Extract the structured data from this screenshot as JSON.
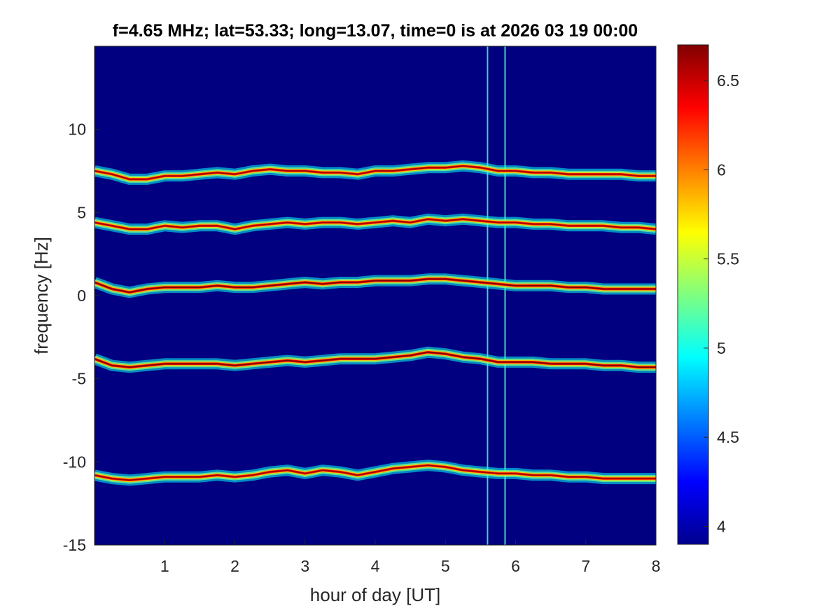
{
  "chart_data": {
    "type": "heatmap",
    "title": "f=4.65 MHz;  lat=53.33; long=13.07, time=0 is at 2026 03 19 00:00",
    "xlabel": "hour of day [UT]",
    "ylabel": "frequency [Hz]",
    "xlim": [
      0,
      8
    ],
    "ylim": [
      -15,
      15
    ],
    "xticks": [
      1,
      2,
      3,
      4,
      5,
      6,
      7,
      8
    ],
    "yticks": [
      -15,
      -10,
      -5,
      0,
      5,
      10
    ],
    "colorbar": {
      "limits": [
        3.9,
        6.7
      ],
      "ticks": [
        4,
        4.5,
        5,
        5.5,
        6,
        6.5
      ],
      "colormap": "jet"
    },
    "background_value": 3.9,
    "series": [
      {
        "x": [
          0,
          0.25,
          0.5,
          0.75,
          1,
          1.25,
          1.5,
          1.75,
          2,
          2.25,
          2.5,
          2.75,
          3,
          3.25,
          3.5,
          3.75,
          4,
          4.25,
          4.5,
          4.75,
          5,
          5.25,
          5.5,
          5.75,
          6,
          6.25,
          6.5,
          6.75,
          7,
          7.25,
          7.5,
          7.75,
          8
        ],
        "y": [
          7.5,
          7.3,
          7.0,
          7.0,
          7.2,
          7.2,
          7.3,
          7.4,
          7.3,
          7.5,
          7.6,
          7.5,
          7.5,
          7.4,
          7.4,
          7.3,
          7.5,
          7.5,
          7.6,
          7.7,
          7.7,
          7.8,
          7.7,
          7.5,
          7.5,
          7.4,
          7.4,
          7.3,
          7.3,
          7.3,
          7.3,
          7.2,
          7.2
        ],
        "peak": 6.6
      },
      {
        "x": [
          0,
          0.25,
          0.5,
          0.75,
          1,
          1.25,
          1.5,
          1.75,
          2,
          2.25,
          2.5,
          2.75,
          3,
          3.25,
          3.5,
          3.75,
          4,
          4.25,
          4.5,
          4.75,
          5,
          5.25,
          5.5,
          5.75,
          6,
          6.25,
          6.5,
          6.75,
          7,
          7.25,
          7.5,
          7.75,
          8
        ],
        "y": [
          4.4,
          4.2,
          4.0,
          4.0,
          4.2,
          4.1,
          4.2,
          4.2,
          4.0,
          4.2,
          4.3,
          4.4,
          4.3,
          4.4,
          4.4,
          4.3,
          4.4,
          4.5,
          4.4,
          4.6,
          4.5,
          4.6,
          4.5,
          4.4,
          4.4,
          4.3,
          4.3,
          4.2,
          4.2,
          4.2,
          4.1,
          4.1,
          4.0
        ],
        "peak": 6.6
      },
      {
        "x": [
          0,
          0.25,
          0.5,
          0.75,
          1,
          1.25,
          1.5,
          1.75,
          2,
          2.25,
          2.5,
          2.75,
          3,
          3.25,
          3.5,
          3.75,
          4,
          4.25,
          4.5,
          4.75,
          5,
          5.25,
          5.5,
          5.75,
          6,
          6.25,
          6.5,
          6.75,
          7,
          7.25,
          7.5,
          7.75,
          8
        ],
        "y": [
          0.8,
          0.4,
          0.2,
          0.4,
          0.5,
          0.5,
          0.5,
          0.6,
          0.5,
          0.5,
          0.6,
          0.7,
          0.8,
          0.7,
          0.8,
          0.8,
          0.9,
          0.9,
          0.9,
          1.0,
          1.0,
          0.9,
          0.8,
          0.7,
          0.6,
          0.6,
          0.6,
          0.5,
          0.5,
          0.4,
          0.4,
          0.4,
          0.4
        ],
        "peak": 6.7
      },
      {
        "x": [
          0,
          0.25,
          0.5,
          0.75,
          1,
          1.25,
          1.5,
          1.75,
          2,
          2.25,
          2.5,
          2.75,
          3,
          3.25,
          3.5,
          3.75,
          4,
          4.25,
          4.5,
          4.75,
          5,
          5.25,
          5.5,
          5.75,
          6,
          6.25,
          6.5,
          6.75,
          7,
          7.25,
          7.5,
          7.75,
          8
        ],
        "y": [
          -3.8,
          -4.2,
          -4.3,
          -4.2,
          -4.1,
          -4.1,
          -4.1,
          -4.1,
          -4.2,
          -4.1,
          -4.0,
          -3.9,
          -4.0,
          -3.9,
          -3.8,
          -3.8,
          -3.8,
          -3.7,
          -3.6,
          -3.4,
          -3.5,
          -3.7,
          -3.8,
          -4.0,
          -4.0,
          -4.0,
          -4.1,
          -4.1,
          -4.1,
          -4.2,
          -4.2,
          -4.3,
          -4.3
        ],
        "peak": 6.7
      },
      {
        "x": [
          0,
          0.25,
          0.5,
          0.75,
          1,
          1.25,
          1.5,
          1.75,
          2,
          2.25,
          2.5,
          2.75,
          3,
          3.25,
          3.5,
          3.75,
          4,
          4.25,
          4.5,
          4.75,
          5,
          5.25,
          5.5,
          5.75,
          6,
          6.25,
          6.5,
          6.75,
          7,
          7.25,
          7.5,
          7.75,
          8
        ],
        "y": [
          -10.8,
          -11.0,
          -11.1,
          -11.0,
          -10.9,
          -10.9,
          -10.9,
          -10.8,
          -10.9,
          -10.8,
          -10.6,
          -10.5,
          -10.7,
          -10.5,
          -10.6,
          -10.8,
          -10.6,
          -10.4,
          -10.3,
          -10.2,
          -10.3,
          -10.5,
          -10.6,
          -10.7,
          -10.7,
          -10.8,
          -10.8,
          -10.9,
          -10.9,
          -11.0,
          -11.0,
          -11.0,
          -11.0
        ],
        "peak": 6.6
      }
    ],
    "vertical_streaks": [
      5.6,
      5.85
    ]
  }
}
